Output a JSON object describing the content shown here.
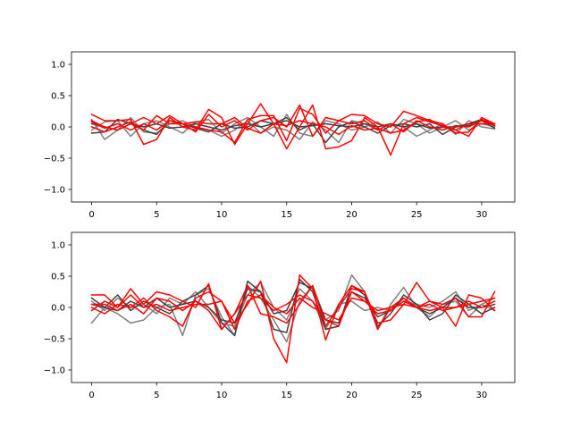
{
  "chart_data": [
    {
      "type": "line",
      "title": "",
      "xlabel": "",
      "ylabel": "",
      "xlim": [
        -1.55,
        32.55
      ],
      "ylim": [
        -1.2,
        1.2
      ],
      "xticks": [
        0,
        5,
        10,
        15,
        20,
        25,
        30
      ],
      "yticks": [
        -1.0,
        -0.5,
        0.0,
        0.5,
        1.0
      ],
      "xtick_labels": [
        "0",
        "5",
        "10",
        "15",
        "20",
        "25",
        "30"
      ],
      "ytick_labels": [
        "−1.0",
        "−0.5",
        "0.0",
        "0.5",
        "1.0"
      ],
      "grid": false,
      "legend": "none",
      "x": [
        0,
        1,
        2,
        3,
        4,
        5,
        6,
        7,
        8,
        9,
        10,
        11,
        12,
        13,
        14,
        15,
        16,
        17,
        18,
        19,
        20,
        21,
        22,
        23,
        24,
        25,
        26,
        27,
        28,
        29,
        30,
        31
      ],
      "series": [
        {
          "color": "#7f7f7f",
          "values": [
            0.12,
            -0.2,
            -0.05,
            0.15,
            -0.08,
            -0.1,
            0.05,
            0.1,
            0.0,
            -0.05,
            -0.15,
            -0.05,
            0.1,
            -0.1,
            0.0,
            -0.05,
            -0.2,
            0.08,
            -0.05,
            -0.25,
            0.1,
            0.05,
            -0.05,
            0.05,
            0.0,
            -0.15,
            -0.05,
            0.05,
            -0.12,
            0.1,
            0.0,
            -0.03
          ]
        },
        {
          "color": "#7f7f7f",
          "values": [
            -0.05,
            0.08,
            0.1,
            -0.15,
            0.05,
            0.1,
            0.0,
            -0.1,
            0.08,
            0.12,
            -0.1,
            0.05,
            0.15,
            0.0,
            -0.15,
            0.2,
            -0.1,
            -0.15,
            0.1,
            0.05,
            -0.05,
            0.0,
            0.08,
            -0.1,
            0.12,
            0.05,
            -0.1,
            0.0,
            0.1,
            -0.05,
            0.05,
            0.0
          ]
        },
        {
          "color": "#404040",
          "values": [
            -0.1,
            -0.08,
            0.12,
            0.05,
            -0.05,
            -0.12,
            0.1,
            0.05,
            -0.02,
            -0.08,
            0.05,
            -0.02,
            0.0,
            0.1,
            0.05,
            0.15,
            -0.05,
            0.05,
            -0.25,
            0.0,
            0.08,
            0.0,
            -0.1,
            0.02,
            0.05,
            0.0,
            0.05,
            -0.12,
            0.0,
            0.02,
            0.1,
            -0.02
          ]
        },
        {
          "color": "#404040",
          "values": [
            0.05,
            0.0,
            -0.05,
            0.05,
            0.0,
            0.05,
            -0.02,
            0.0,
            0.05,
            0.0,
            -0.05,
            0.02,
            0.05,
            0.0,
            0.05,
            0.1,
            0.0,
            0.02,
            0.05,
            0.02,
            0.0,
            0.05,
            0.0,
            0.05,
            0.0,
            0.05,
            -0.02,
            0.0,
            0.0,
            0.05,
            0.12,
            0.02
          ]
        },
        {
          "color": "#ff0000",
          "values": [
            0.2,
            0.1,
            0.1,
            0.12,
            -0.28,
            -0.2,
            0.15,
            0.0,
            -0.05,
            0.28,
            0.15,
            -0.28,
            0.05,
            0.37,
            0.05,
            -0.35,
            0.0,
            0.35,
            -0.35,
            -0.32,
            -0.22,
            0.15,
            0.0,
            -0.45,
            0.05,
            0.15,
            0.08,
            0.02,
            -0.05,
            -0.15,
            0.15,
            0.05
          ]
        },
        {
          "color": "#ff0000",
          "values": [
            0.1,
            0.0,
            -0.05,
            0.05,
            0.15,
            0.05,
            0.18,
            0.05,
            0.0,
            -0.05,
            -0.08,
            -0.25,
            0.12,
            0.18,
            0.18,
            -0.22,
            0.3,
            0.2,
            -0.1,
            0.1,
            0.2,
            0.18,
            0.05,
            0.0,
            0.25,
            0.18,
            0.1,
            0.05,
            -0.1,
            -0.08,
            0.12,
            0.05
          ]
        },
        {
          "color": "#ff0000",
          "values": [
            0.08,
            -0.02,
            0.05,
            -0.05,
            0.05,
            -0.05,
            0.1,
            0.05,
            -0.08,
            0.2,
            0.0,
            0.1,
            -0.05,
            0.1,
            0.15,
            0.0,
            0.35,
            -0.15,
            0.15,
            0.1,
            0.05,
            0.1,
            -0.05,
            0.05,
            -0.08,
            0.1,
            0.0,
            -0.05,
            0.02,
            0.0,
            0.1,
            0.02
          ]
        },
        {
          "color": "#ff0000",
          "values": [
            0.0,
            -0.08,
            0.0,
            0.08,
            -0.05,
            0.18,
            0.05,
            0.05,
            0.08,
            0.05,
            0.05,
            0.15,
            -0.02,
            -0.1,
            0.05,
            0.02,
            0.1,
            0.05,
            0.0,
            -0.12,
            0.02,
            -0.05,
            -0.02,
            -0.1,
            -0.05,
            0.08,
            0.12,
            0.0,
            -0.05,
            0.05,
            0.05,
            0.05
          ]
        }
      ]
    },
    {
      "type": "line",
      "title": "",
      "xlabel": "",
      "ylabel": "",
      "xlim": [
        -1.55,
        32.55
      ],
      "ylim": [
        -1.2,
        1.2
      ],
      "xticks": [
        0,
        5,
        10,
        15,
        20,
        25,
        30
      ],
      "yticks": [
        -1.0,
        -0.5,
        0.0,
        0.5,
        1.0
      ],
      "xtick_labels": [
        "0",
        "5",
        "10",
        "15",
        "20",
        "25",
        "30"
      ],
      "ytick_labels": [
        "−1.0",
        "−0.5",
        "0.0",
        "0.5",
        "1.0"
      ],
      "grid": false,
      "legend": "none",
      "x": [
        0,
        1,
        2,
        3,
        4,
        5,
        6,
        7,
        8,
        9,
        10,
        11,
        12,
        13,
        14,
        15,
        16,
        17,
        18,
        19,
        20,
        21,
        22,
        23,
        24,
        25,
        26,
        27,
        28,
        29,
        30,
        31
      ],
      "series": [
        {
          "color": "#7f7f7f",
          "values": [
            -0.25,
            0.0,
            -0.1,
            -0.25,
            -0.2,
            0.0,
            0.05,
            -0.45,
            0.2,
            0.3,
            -0.15,
            -0.45,
            0.35,
            0.15,
            -0.2,
            -0.55,
            0.1,
            0.35,
            -0.2,
            -0.05,
            0.52,
            0.25,
            -0.35,
            0.05,
            0.32,
            0.0,
            -0.15,
            0.05,
            0.1,
            -0.15,
            0.05,
            -0.05
          ]
        },
        {
          "color": "#7f7f7f",
          "values": [
            0.1,
            -0.05,
            0.15,
            0.0,
            0.05,
            -0.1,
            0.15,
            0.05,
            0.25,
            0.0,
            -0.25,
            -0.3,
            0.2,
            0.4,
            0.0,
            -0.2,
            0.3,
            0.1,
            -0.35,
            0.05,
            0.1,
            -0.05,
            0.0,
            -0.05,
            0.1,
            0.05,
            0.0,
            0.1,
            0.25,
            -0.05,
            0.05,
            0.15
          ]
        },
        {
          "color": "#404040",
          "values": [
            0.15,
            0.0,
            0.2,
            -0.05,
            0.1,
            0.0,
            -0.1,
            0.1,
            0.2,
            0.35,
            -0.25,
            -0.45,
            0.42,
            0.25,
            -0.35,
            -0.4,
            0.45,
            0.25,
            -0.35,
            -0.3,
            0.35,
            0.2,
            -0.3,
            -0.1,
            0.2,
            0.05,
            -0.2,
            -0.1,
            0.2,
            0.05,
            -0.1,
            0.0
          ]
        },
        {
          "color": "#404040",
          "values": [
            0.05,
            0.0,
            -0.05,
            0.1,
            0.0,
            0.15,
            0.0,
            0.05,
            0.1,
            0.0,
            -0.2,
            -0.25,
            0.3,
            0.25,
            -0.1,
            -0.05,
            0.4,
            0.3,
            -0.2,
            -0.25,
            0.25,
            0.15,
            -0.15,
            -0.05,
            0.15,
            0.0,
            -0.1,
            0.0,
            0.15,
            0.0,
            0.0,
            0.05
          ]
        },
        {
          "color": "#ff0000",
          "values": [
            0.0,
            -0.1,
            0.05,
            0.0,
            0.15,
            -0.05,
            -0.15,
            -0.3,
            0.15,
            0.25,
            0.1,
            -0.25,
            0.05,
            0.42,
            -0.5,
            -0.88,
            0.52,
            0.3,
            -0.52,
            0.05,
            0.35,
            0.25,
            -0.25,
            -0.2,
            0.05,
            0.4,
            0.1,
            0.0,
            -0.3,
            0.2,
            0.15,
            -0.05
          ]
        },
        {
          "color": "#ff0000",
          "values": [
            0.2,
            0.2,
            0.0,
            0.3,
            0.05,
            0.25,
            0.2,
            0.1,
            0.0,
            0.38,
            -0.35,
            -0.1,
            0.35,
            -0.1,
            -0.15,
            -0.25,
            0.05,
            0.35,
            -0.3,
            0.0,
            0.3,
            0.25,
            -0.35,
            0.0,
            0.15,
            0.0,
            0.1,
            0.05,
            0.15,
            -0.15,
            -0.15,
            0.25
          ]
        },
        {
          "color": "#ff0000",
          "values": [
            0.05,
            0.05,
            -0.05,
            0.05,
            -0.1,
            0.15,
            0.1,
            -0.05,
            0.1,
            -0.05,
            -0.35,
            -0.1,
            0.2,
            0.15,
            -0.05,
            0.05,
            0.2,
            0.1,
            -0.2,
            -0.3,
            0.25,
            0.1,
            -0.05,
            0.0,
            0.05,
            0.0,
            -0.05,
            0.0,
            0.0,
            0.1,
            0.0,
            0.1
          ]
        },
        {
          "color": "#ff0000",
          "values": [
            -0.05,
            0.1,
            0.0,
            0.2,
            0.0,
            0.05,
            -0.05,
            0.0,
            0.05,
            0.05,
            0.1,
            -0.35,
            0.1,
            0.2,
            0.0,
            -0.1,
            0.15,
            0.0,
            -0.1,
            -0.2,
            0.15,
            0.1,
            -0.1,
            -0.05,
            0.1,
            0.0,
            0.05,
            -0.05,
            0.0,
            0.05,
            0.1,
            0.15
          ]
        }
      ]
    }
  ]
}
